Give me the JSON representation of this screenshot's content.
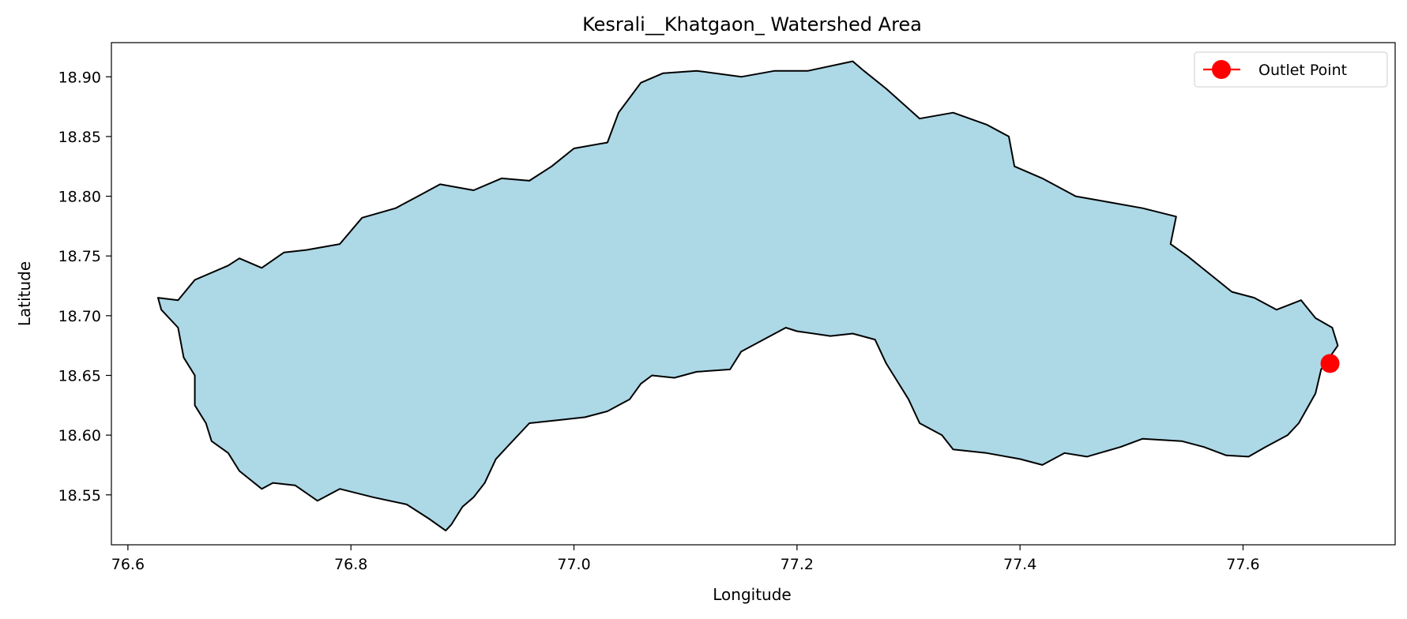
{
  "chart_data": {
    "type": "map",
    "title": "Kesrali__Khatgaon_ Watershed Area",
    "xlabel": "Longitude",
    "ylabel": "Latitude",
    "xlim": [
      76.5852,
      77.7364
    ],
    "ylim": [
      18.5082,
      18.9286
    ],
    "xticks": [
      76.6,
      76.8,
      77.0,
      77.2,
      77.4,
      77.6
    ],
    "xtick_labels": [
      "76.6",
      "76.8",
      "77.0",
      "77.2",
      "77.4",
      "77.6"
    ],
    "yticks": [
      18.55,
      18.6,
      18.65,
      18.7,
      18.75,
      18.8,
      18.85,
      18.9
    ],
    "ytick_labels": [
      "18.55",
      "18.60",
      "18.65",
      "18.70",
      "18.75",
      "18.80",
      "18.85",
      "18.90"
    ],
    "grid": false,
    "legend": {
      "placement": "top-right",
      "entries": [
        {
          "label": "Outlet Point",
          "color": "#ff0000"
        }
      ]
    },
    "watershed": {
      "fill": "#add8e6",
      "edge": "#000000",
      "boundary": [
        [
          76.627,
          18.715
        ],
        [
          76.645,
          18.713
        ],
        [
          76.66,
          18.73
        ],
        [
          76.69,
          18.742
        ],
        [
          76.7,
          18.748
        ],
        [
          76.72,
          18.74
        ],
        [
          76.74,
          18.753
        ],
        [
          76.76,
          18.755
        ],
        [
          76.79,
          18.76
        ],
        [
          76.81,
          18.782
        ],
        [
          76.84,
          18.79
        ],
        [
          76.86,
          18.8
        ],
        [
          76.88,
          18.81
        ],
        [
          76.91,
          18.805
        ],
        [
          76.935,
          18.815
        ],
        [
          76.96,
          18.813
        ],
        [
          76.98,
          18.825
        ],
        [
          77.0,
          18.84
        ],
        [
          77.03,
          18.845
        ],
        [
          77.04,
          18.87
        ],
        [
          77.06,
          18.895
        ],
        [
          77.08,
          18.903
        ],
        [
          77.11,
          18.905
        ],
        [
          77.15,
          18.9
        ],
        [
          77.18,
          18.905
        ],
        [
          77.21,
          18.905
        ],
        [
          77.25,
          18.913
        ],
        [
          77.26,
          18.905
        ],
        [
          77.28,
          18.89
        ],
        [
          77.31,
          18.865
        ],
        [
          77.34,
          18.87
        ],
        [
          77.37,
          18.86
        ],
        [
          77.39,
          18.85
        ],
        [
          77.395,
          18.825
        ],
        [
          77.42,
          18.815
        ],
        [
          77.45,
          18.8
        ],
        [
          77.48,
          18.795
        ],
        [
          77.51,
          18.79
        ],
        [
          77.54,
          18.783
        ],
        [
          77.535,
          18.76
        ],
        [
          77.55,
          18.75
        ],
        [
          77.57,
          18.735
        ],
        [
          77.59,
          18.72
        ],
        [
          77.61,
          18.715
        ],
        [
          77.63,
          18.705
        ],
        [
          77.652,
          18.713
        ],
        [
          77.665,
          18.698
        ],
        [
          77.68,
          18.69
        ],
        [
          77.685,
          18.675
        ],
        [
          77.67,
          18.655
        ],
        [
          77.665,
          18.635
        ],
        [
          77.65,
          18.61
        ],
        [
          77.64,
          18.6
        ],
        [
          77.62,
          18.59
        ],
        [
          77.605,
          18.582
        ],
        [
          77.585,
          18.583
        ],
        [
          77.565,
          18.59
        ],
        [
          77.545,
          18.595
        ],
        [
          77.51,
          18.597
        ],
        [
          77.49,
          18.59
        ],
        [
          77.46,
          18.582
        ],
        [
          77.44,
          18.585
        ],
        [
          77.42,
          18.575
        ],
        [
          77.4,
          18.58
        ],
        [
          77.37,
          18.585
        ],
        [
          77.34,
          18.588
        ],
        [
          77.33,
          18.6
        ],
        [
          77.31,
          18.61
        ],
        [
          77.3,
          18.63
        ],
        [
          77.29,
          18.645
        ],
        [
          77.28,
          18.66
        ],
        [
          77.27,
          18.68
        ],
        [
          77.25,
          18.685
        ],
        [
          77.23,
          18.683
        ],
        [
          77.2,
          18.687
        ],
        [
          77.19,
          18.69
        ],
        [
          77.17,
          18.68
        ],
        [
          77.15,
          18.67
        ],
        [
          77.14,
          18.655
        ],
        [
          77.11,
          18.653
        ],
        [
          77.09,
          18.648
        ],
        [
          77.07,
          18.65
        ],
        [
          77.06,
          18.643
        ],
        [
          77.05,
          18.63
        ],
        [
          77.03,
          18.62
        ],
        [
          77.01,
          18.615
        ],
        [
          76.99,
          18.613
        ],
        [
          76.96,
          18.61
        ],
        [
          76.94,
          18.59
        ],
        [
          76.93,
          18.58
        ],
        [
          76.92,
          18.56
        ],
        [
          76.91,
          18.548
        ],
        [
          76.9,
          18.54
        ],
        [
          76.89,
          18.525
        ],
        [
          76.885,
          18.52
        ],
        [
          76.87,
          18.53
        ],
        [
          76.85,
          18.542
        ],
        [
          76.82,
          18.548
        ],
        [
          76.79,
          18.555
        ],
        [
          76.77,
          18.545
        ],
        [
          76.75,
          18.558
        ],
        [
          76.73,
          18.56
        ],
        [
          76.72,
          18.555
        ],
        [
          76.7,
          18.57
        ],
        [
          76.69,
          18.585
        ],
        [
          76.675,
          18.595
        ],
        [
          76.67,
          18.61
        ],
        [
          76.66,
          18.625
        ],
        [
          76.66,
          18.65
        ],
        [
          76.65,
          18.665
        ],
        [
          76.645,
          18.69
        ],
        [
          76.63,
          18.705
        ],
        [
          76.627,
          18.715
        ]
      ]
    },
    "outlet_point": {
      "lon": 77.678,
      "lat": 18.66,
      "label": "Outlet Point",
      "color": "#ff0000"
    }
  }
}
